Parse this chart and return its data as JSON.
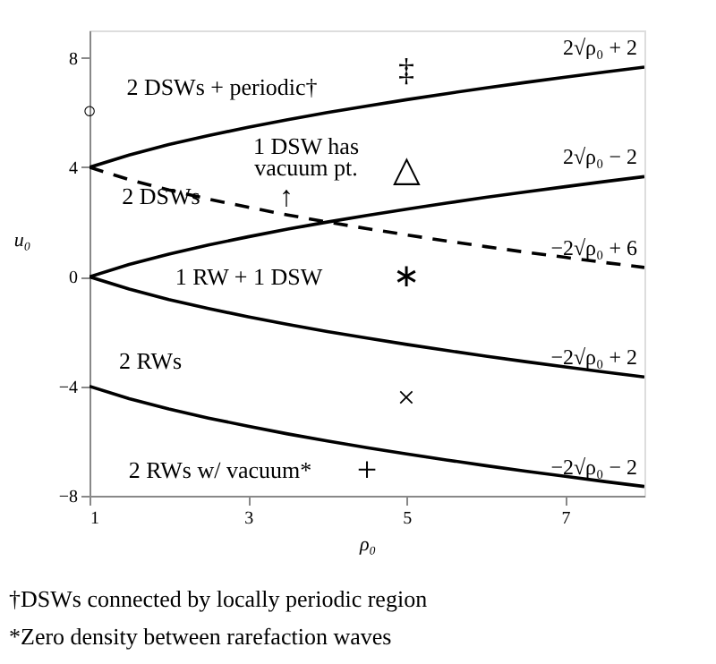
{
  "chart_data": {
    "type": "line",
    "xlabel": "ρ₀",
    "ylabel": "u₀",
    "x": [
      1,
      1.5,
      2,
      2.5,
      3,
      3.5,
      4,
      4.5,
      5,
      5.5,
      6,
      6.5,
      7,
      7.5,
      8
    ],
    "series": [
      {
        "name": "2√ρ₀ + 2",
        "color": "#000000",
        "line_style": "solid",
        "values": [
          4,
          4.45,
          4.83,
          5.16,
          5.46,
          5.74,
          6,
          6.24,
          6.47,
          6.69,
          6.9,
          7.1,
          7.29,
          7.48,
          7.66
        ]
      },
      {
        "name": "2√ρ₀ − 2",
        "color": "#000000",
        "line_style": "solid",
        "values": [
          0,
          0.45,
          0.83,
          1.16,
          1.46,
          1.74,
          2,
          2.24,
          2.47,
          2.69,
          2.9,
          3.1,
          3.29,
          3.48,
          3.66
        ]
      },
      {
        "name": "−2√ρ₀ + 6",
        "color": "#000000",
        "line_style": "dashed",
        "values": [
          4,
          3.55,
          3.17,
          2.84,
          2.54,
          2.26,
          2,
          1.76,
          1.53,
          1.31,
          1.1,
          0.9,
          0.71,
          0.52,
          0.34
        ]
      },
      {
        "name": "−2√ρ₀ + 2",
        "color": "#000000",
        "line_style": "solid",
        "values": [
          0,
          -0.45,
          -0.83,
          -1.16,
          -1.46,
          -1.74,
          -2,
          -2.24,
          -2.47,
          -2.69,
          -2.9,
          -3.1,
          -3.29,
          -3.48,
          -3.66
        ]
      },
      {
        "name": "−2√ρ₀ − 2",
        "color": "#000000",
        "line_style": "solid",
        "values": [
          -4,
          -4.45,
          -4.83,
          -5.16,
          -5.46,
          -5.74,
          -6,
          -6.24,
          -6.47,
          -6.69,
          -6.9,
          -7.1,
          -7.29,
          -7.48,
          -7.66
        ]
      }
    ],
    "xlim": [
      1,
      8
    ],
    "ylim": [
      -8,
      9
    ],
    "xticks": [
      1,
      3,
      5,
      7
    ],
    "yticks": [
      -8,
      -4,
      0,
      4,
      8
    ],
    "grid": false,
    "marker": "none",
    "annotations": [
      "2 DSWs + periodic†",
      "1 DSW has",
      "vacuum pt.",
      "2 DSWs",
      "↑",
      "1 RW + 1 DSW",
      "2 RWs",
      "2 RWs w/ vacuum*",
      "‡",
      "△",
      "∗",
      "×",
      "+",
      "○",
      "†DSWs connected by locally periodic region",
      "*Zero density between rarefaction waves"
    ]
  }
}
